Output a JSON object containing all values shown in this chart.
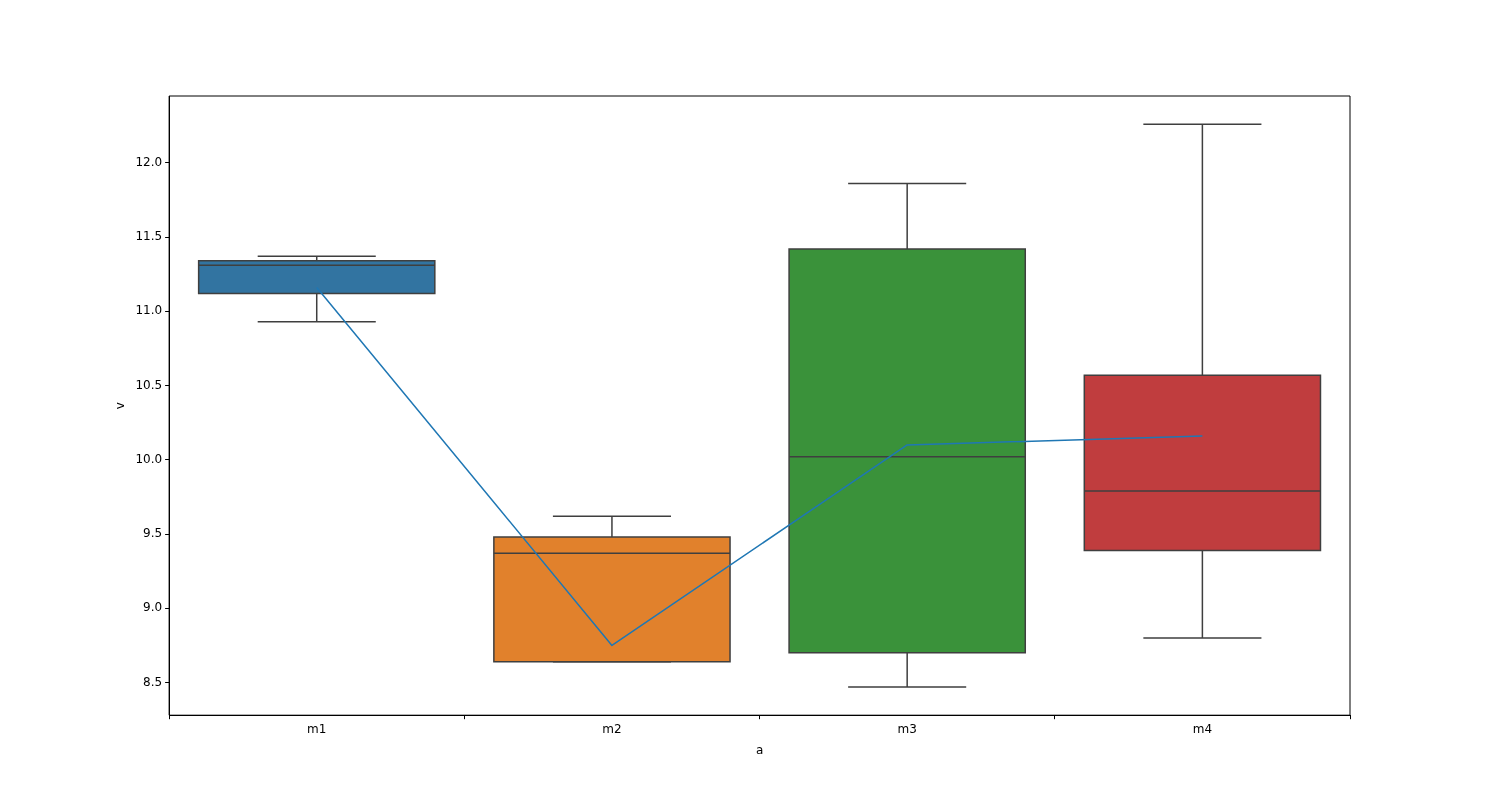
{
  "chart_data": {
    "type": "box",
    "xlabel": "a",
    "ylabel": "v",
    "categories": [
      "m1",
      "m2",
      "m3",
      "m4"
    ],
    "colors": [
      "#3274a1",
      "#e1812c",
      "#3a923a",
      "#c03d3e"
    ],
    "boxes": [
      {
        "low": 10.93,
        "q1": 11.12,
        "median": 11.31,
        "q3": 11.34,
        "high": 11.37
      },
      {
        "low": 8.64,
        "q1": 8.64,
        "median": 9.37,
        "q3": 9.48,
        "high": 9.62
      },
      {
        "low": 8.47,
        "q1": 8.7,
        "median": 10.02,
        "q3": 11.42,
        "high": 11.86
      },
      {
        "low": 8.8,
        "q1": 9.39,
        "median": 9.79,
        "q3": 10.57,
        "high": 12.26
      }
    ],
    "series": [
      {
        "type": "line",
        "color": "#1f77b4",
        "values": [
          11.16,
          8.75,
          10.1,
          10.16
        ]
      }
    ],
    "ylim": [
      8.28,
      12.45
    ],
    "yticks": [
      {
        "value": 8.5,
        "label": "8.5"
      },
      {
        "value": 9,
        "label": "9.0"
      },
      {
        "value": 9.5,
        "label": "9.5"
      },
      {
        "value": 10,
        "label": "10.0"
      },
      {
        "value": 10.5,
        "label": "10.5"
      },
      {
        "value": 11,
        "label": "11.0"
      },
      {
        "value": 11.5,
        "label": "11.5"
      },
      {
        "value": 12,
        "label": "12.0"
      }
    ],
    "grid": false,
    "legend": false
  }
}
